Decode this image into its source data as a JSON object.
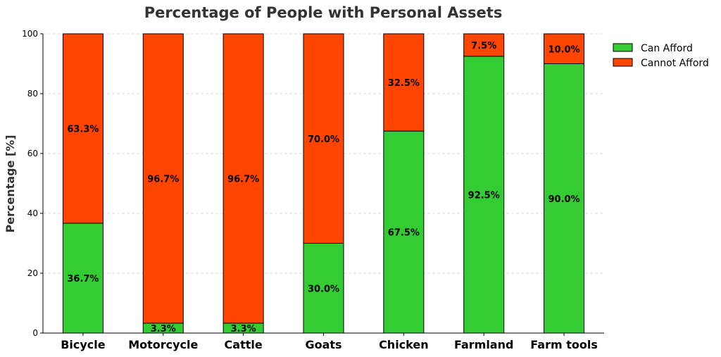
{
  "chart_data": {
    "type": "bar",
    "stacked": true,
    "title": "Percentage of People with Personal Assets",
    "xlabel": "",
    "ylabel": "Percentage [%]",
    "ylim": [
      0,
      100
    ],
    "yticks": [
      0,
      20,
      40,
      60,
      80,
      100
    ],
    "grid": "y-dashed",
    "legend_position": "top-right outside",
    "categories": [
      "Bicycle",
      "Motorcycle",
      "Cattle",
      "Goats",
      "Chicken",
      "Farmland",
      "Farm tools"
    ],
    "series": [
      {
        "name": "Can Afford",
        "color": "#33cc33",
        "values": [
          36.7,
          3.3,
          3.3,
          30.0,
          67.5,
          92.5,
          90.0
        ],
        "labels": [
          "36.7%",
          "3.3%",
          "3.3%",
          "30.0%",
          "67.5%",
          "92.5%",
          "90.0%"
        ]
      },
      {
        "name": "Cannot Afford",
        "color": "#ff4500",
        "values": [
          63.3,
          96.7,
          96.7,
          70.0,
          32.5,
          7.5,
          10.0
        ],
        "labels": [
          "63.3%",
          "96.7%",
          "96.7%",
          "70.0%",
          "32.5%",
          "7.5%",
          "10.0%"
        ]
      }
    ]
  }
}
